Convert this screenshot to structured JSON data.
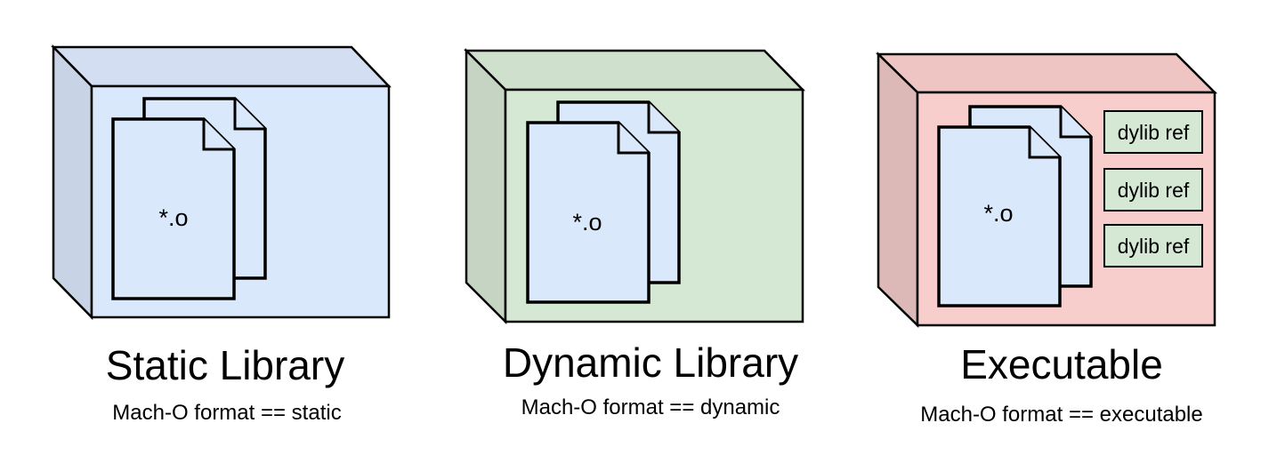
{
  "colors": {
    "static_front": "#dae8fc",
    "static_side": "#c9d3e6",
    "static_top": "#d3def2",
    "dynamic_front": "#d5e8d4",
    "dynamic_side": "#c6d4c3",
    "dynamic_top": "#cfe0cc",
    "exec_front": "#f8cecc",
    "exec_side": "#dcb8b6",
    "exec_top": "#eec5c2",
    "doc_fill": "#dae8fc",
    "ref_fill": "#d5e8d4"
  },
  "panels": [
    {
      "id": "static",
      "object_label": "*.o",
      "title": "Static Library",
      "subtitle": "Mach-O format == static",
      "refs": []
    },
    {
      "id": "dynamic",
      "object_label": "*.o",
      "title": "Dynamic Library",
      "subtitle": "Mach-O format == dynamic",
      "refs": []
    },
    {
      "id": "executable",
      "object_label": "*.o",
      "title": "Executable",
      "subtitle": "Mach-O format == executable",
      "refs": [
        "dylib ref",
        "dylib ref",
        "dylib ref"
      ]
    }
  ]
}
